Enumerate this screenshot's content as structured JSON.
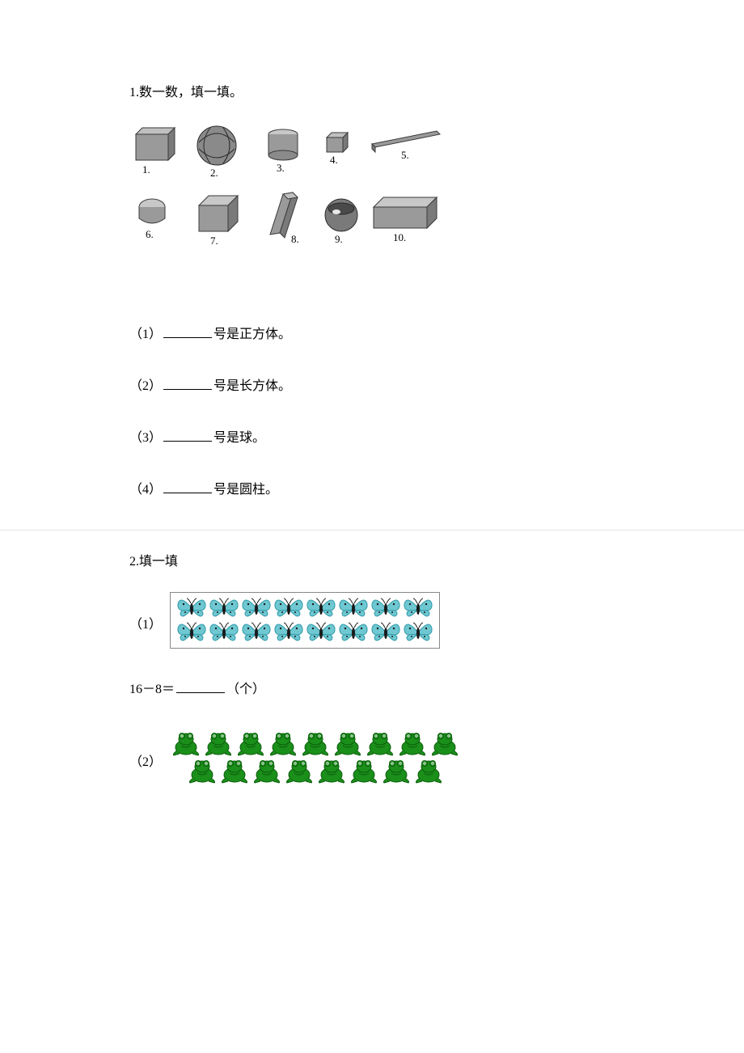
{
  "q1": {
    "title": "1.数一数，填一填。",
    "shapes": [
      {
        "n": "1.",
        "type": "cuboid"
      },
      {
        "n": "2.",
        "type": "sphere-pattern"
      },
      {
        "n": "3.",
        "type": "cylinder"
      },
      {
        "n": "4.",
        "type": "cube-small"
      },
      {
        "n": "5.",
        "type": "rod"
      },
      {
        "n": "6.",
        "type": "short-cylinder"
      },
      {
        "n": "7.",
        "type": "cube"
      },
      {
        "n": "8.",
        "type": "prism"
      },
      {
        "n": "9.",
        "type": "sphere-bowl"
      },
      {
        "n": "10.",
        "type": "cuboid-flat"
      }
    ],
    "subs": [
      {
        "label": "（1）",
        "suffix": "号是正方体。"
      },
      {
        "label": "（2）",
        "suffix": "号是长方体。"
      },
      {
        "label": "（3）",
        "suffix": "号是球。"
      },
      {
        "label": "（4）",
        "suffix": "号是圆柱。"
      }
    ]
  },
  "q2": {
    "title": "2.填一填",
    "part1": {
      "label": "（1）",
      "rows": [
        8,
        8
      ],
      "colors": {
        "wing": "#6fc7d1",
        "wing_dark": "#2f9aa8",
        "body": "#1a1a1a",
        "border": "#888888"
      },
      "item_w": 40,
      "item_h": 30
    },
    "expr1": {
      "lhs": "16－8＝",
      "unit": "（个）"
    },
    "part2": {
      "label": "（2）",
      "rows": [
        9,
        8
      ],
      "colors": {
        "body": "#1a8f1a",
        "body_dark": "#0c5c0c",
        "eye": "#ffffff"
      },
      "item_w": 40,
      "item_h": 34
    }
  },
  "style": {
    "text_color": "#000000",
    "bg": "#ffffff",
    "divider": "#e8e8e8",
    "font_size": 16,
    "shape_fill": "#9a9a9a",
    "shape_stroke": "#3a3a3a",
    "shape_light": "#c8c8c8"
  }
}
